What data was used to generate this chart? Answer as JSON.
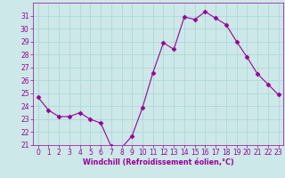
{
  "x": [
    0,
    1,
    2,
    3,
    4,
    5,
    6,
    7,
    8,
    9,
    10,
    11,
    12,
    13,
    14,
    15,
    16,
    17,
    18,
    19,
    20,
    21,
    22,
    23
  ],
  "y": [
    24.7,
    23.7,
    23.2,
    23.2,
    23.5,
    23.0,
    22.7,
    20.9,
    20.8,
    21.7,
    23.9,
    26.6,
    28.9,
    28.4,
    30.9,
    30.7,
    31.3,
    30.8,
    30.3,
    29.0,
    27.8,
    26.5,
    25.7,
    24.9
  ],
  "line_color": "#990099",
  "marker": "D",
  "marker_size": 2.5,
  "bg_color": "#cce8e8",
  "grid_color": "#aad4d4",
  "xlabel": "Windchill (Refroidissement éolien,°C)",
  "xlabel_color": "#990099",
  "tick_color": "#990099",
  "ylim": [
    21,
    32
  ],
  "xlim": [
    -0.5,
    23.5
  ],
  "yticks": [
    21,
    22,
    23,
    24,
    25,
    26,
    27,
    28,
    29,
    30,
    31
  ],
  "xticks": [
    0,
    1,
    2,
    3,
    4,
    5,
    6,
    7,
    8,
    9,
    10,
    11,
    12,
    13,
    14,
    15,
    16,
    17,
    18,
    19,
    20,
    21,
    22,
    23
  ],
  "tick_fontsize": 5.5,
  "xlabel_fontsize": 5.8
}
